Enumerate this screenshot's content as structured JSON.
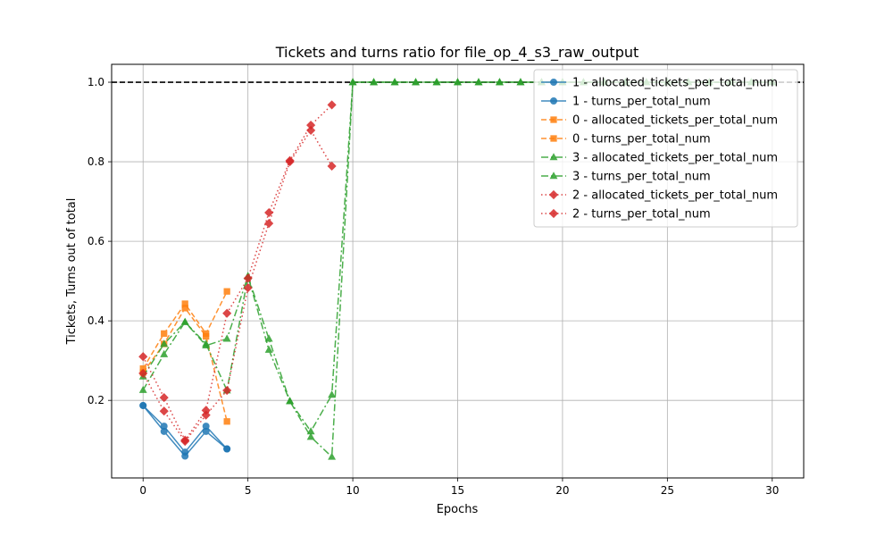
{
  "chart_data": {
    "type": "line",
    "title": "Tickets and turns ratio for file_op_4_s3_raw_output",
    "xlabel": "Epochs",
    "ylabel": "Tickets, Turns out of total",
    "xlim": [
      -1.5,
      31.5
    ],
    "ylim": [
      0.005,
      1.045
    ],
    "xticks": [
      0,
      5,
      10,
      15,
      20,
      25,
      30
    ],
    "yticks": [
      0.2,
      0.4,
      0.6,
      0.8,
      1.0
    ],
    "xtick_labels": [
      "0",
      "5",
      "10",
      "15",
      "20",
      "25",
      "30"
    ],
    "ytick_labels": [
      "0.2",
      "0.4",
      "0.6",
      "0.8",
      "1.0"
    ],
    "grid": true,
    "legend_position": "upper-right",
    "reference_line": {
      "y": 1.0,
      "style": "dashed",
      "color": "#000000"
    },
    "series": [
      {
        "name": "1 - allocated_tickets_per_total_num",
        "color": "#1f77b4",
        "marker": "circle",
        "dash": "solid",
        "x": [
          0,
          1,
          2,
          3,
          4
        ],
        "y": [
          0.187,
          0.135,
          0.07,
          0.135,
          0.078
        ]
      },
      {
        "name": "1 - turns_per_total_num",
        "color": "#1f77b4",
        "marker": "circle",
        "dash": "solid",
        "x": [
          0,
          1,
          2,
          3,
          4
        ],
        "y": [
          0.187,
          0.122,
          0.06,
          0.122,
          0.078
        ]
      },
      {
        "name": "0 - allocated_tickets_per_total_num",
        "color": "#ff7f0e",
        "marker": "square",
        "dash": "dashed",
        "x": [
          0,
          1,
          2,
          3,
          4
        ],
        "y": [
          0.28,
          0.368,
          0.443,
          0.368,
          0.474
        ]
      },
      {
        "name": "0 - turns_per_total_num",
        "color": "#ff7f0e",
        "marker": "square",
        "dash": "dashed",
        "x": [
          0,
          1,
          2,
          3,
          4
        ],
        "y": [
          0.27,
          0.342,
          0.432,
          0.361,
          0.147
        ]
      },
      {
        "name": "3 - allocated_tickets_per_total_num",
        "color": "#2ca02c",
        "marker": "triangle",
        "dash": "dashdot",
        "x": [
          0,
          1,
          2,
          3,
          4,
          5,
          6,
          7,
          8,
          9,
          10,
          11,
          12,
          13,
          14,
          15,
          16,
          17,
          18,
          19,
          20,
          21,
          22,
          23,
          24,
          25,
          26,
          27,
          28,
          29,
          30
        ],
        "y": [
          0.226,
          0.316,
          0.397,
          0.338,
          0.355,
          0.512,
          0.355,
          0.198,
          0.122,
          0.214,
          1,
          1,
          1,
          1,
          1,
          1,
          1,
          1,
          1,
          1,
          1,
          1,
          1,
          1,
          1,
          1,
          1,
          1,
          1,
          1,
          1
        ]
      },
      {
        "name": "3 - turns_per_total_num",
        "color": "#2ca02c",
        "marker": "triangle",
        "dash": "dashdot",
        "x": [
          0,
          1,
          2,
          3,
          4,
          5,
          6,
          7,
          8,
          9,
          10,
          11,
          12,
          13,
          14,
          15,
          16,
          17,
          18,
          19,
          20,
          21,
          22,
          23,
          24,
          25,
          26,
          27,
          28,
          29,
          30
        ],
        "y": [
          0.26,
          0.342,
          0.397,
          0.342,
          0.225,
          0.512,
          0.327,
          0.198,
          0.108,
          0.058,
          1,
          1,
          1,
          1,
          1,
          1,
          1,
          1,
          1,
          1,
          1,
          1,
          1,
          1,
          1,
          1,
          1,
          1,
          1,
          1,
          1
        ]
      },
      {
        "name": "2 - allocated_tickets_per_total_num",
        "color": "#d62728",
        "marker": "diamond",
        "dash": "dotted",
        "x": [
          0,
          1,
          2,
          3,
          4,
          5,
          6,
          7,
          8,
          9
        ],
        "y": [
          0.31,
          0.207,
          0.1,
          0.175,
          0.419,
          0.507,
          0.672,
          0.803,
          0.892,
          0.943
        ]
      },
      {
        "name": "2 - turns_per_total_num",
        "color": "#d62728",
        "marker": "diamond",
        "dash": "dotted",
        "x": [
          0,
          1,
          2,
          3,
          4,
          5,
          6,
          7,
          8,
          9
        ],
        "y": [
          0.268,
          0.173,
          0.097,
          0.163,
          0.225,
          0.483,
          0.645,
          0.8,
          0.879,
          0.789
        ]
      }
    ]
  }
}
